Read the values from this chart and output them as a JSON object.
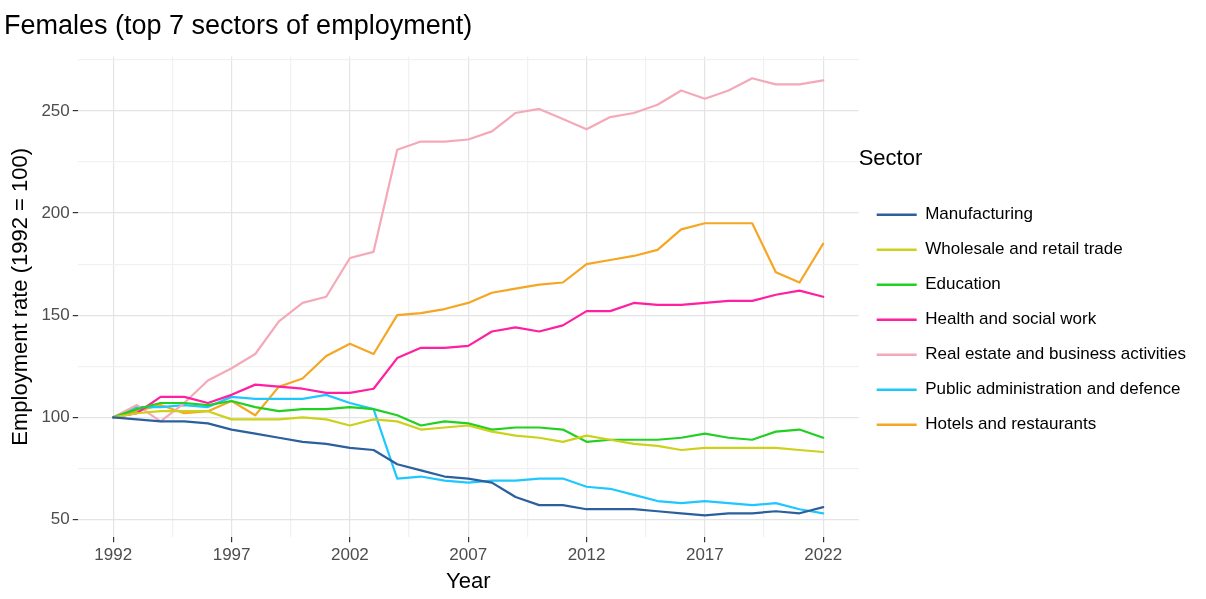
{
  "chart_data": {
    "type": "line",
    "title": "Females (top 7 sectors of employment)",
    "xlabel": "Year",
    "ylabel": "Employment rate (1992 = 100)",
    "legend_title": "Sector",
    "x": [
      1992,
      1993,
      1994,
      1995,
      1996,
      1997,
      1998,
      1999,
      2000,
      2001,
      2002,
      2003,
      2004,
      2005,
      2006,
      2007,
      2008,
      2009,
      2010,
      2011,
      2012,
      2013,
      2014,
      2015,
      2016,
      2017,
      2018,
      2019,
      2020,
      2021,
      2022
    ],
    "series": [
      {
        "name": "Manufacturing",
        "color": "#2c5f9e",
        "values": [
          100,
          99,
          98,
          98,
          97,
          94,
          92,
          90,
          88,
          87,
          85,
          84,
          77,
          74,
          71,
          70,
          68,
          61,
          57,
          57,
          55,
          55,
          55,
          54,
          53,
          52,
          53,
          53,
          54,
          53,
          56
        ]
      },
      {
        "name": "Wholesale and retail trade",
        "color": "#cdd11a",
        "values": [
          100,
          102,
          103,
          103,
          103,
          99,
          99,
          99,
          100,
          99,
          96,
          99,
          98,
          94,
          95,
          96,
          93,
          91,
          90,
          88,
          91,
          89,
          87,
          86,
          84,
          85,
          85,
          85,
          85,
          84,
          83
        ]
      },
      {
        "name": "Education",
        "color": "#22d022",
        "values": [
          100,
          104,
          107,
          107,
          106,
          108,
          105,
          103,
          104,
          104,
          105,
          104,
          101,
          96,
          98,
          97,
          94,
          95,
          95,
          94,
          88,
          89,
          89,
          89,
          90,
          92,
          90,
          89,
          93,
          94,
          90
        ]
      },
      {
        "name": "Health and social work",
        "color": "#ff1fa0",
        "values": [
          100,
          102,
          110,
          110,
          107,
          111,
          116,
          115,
          114,
          112,
          112,
          114,
          129,
          134,
          134,
          135,
          142,
          144,
          142,
          145,
          152,
          152,
          156,
          155,
          155,
          156,
          157,
          157,
          160,
          162,
          159
        ]
      },
      {
        "name": "Real estate and business activities",
        "color": "#f5a9b8",
        "values": [
          100,
          106,
          98,
          107,
          118,
          124,
          131,
          147,
          156,
          159,
          178,
          181,
          231,
          235,
          235,
          236,
          240,
          249,
          251,
          246,
          241,
          247,
          249,
          253,
          260,
          256,
          260,
          266,
          263,
          263,
          265
        ]
      },
      {
        "name": "Public administration and defence",
        "color": "#1ec8ff",
        "values": [
          100,
          105,
          105,
          106,
          105,
          110,
          109,
          109,
          109,
          111,
          107,
          104,
          70,
          71,
          69,
          68,
          69,
          69,
          70,
          70,
          66,
          65,
          62,
          59,
          58,
          59,
          58,
          57,
          58,
          55,
          53
        ]
      },
      {
        "name": "Hotels and restaurants",
        "color": "#f5a623",
        "values": [
          100,
          103,
          106,
          102,
          103,
          108,
          101,
          115,
          119,
          130,
          136,
          131,
          150,
          151,
          153,
          156,
          161,
          163,
          165,
          166,
          175,
          177,
          179,
          182,
          192,
          195,
          195,
          195,
          171,
          166,
          185
        ]
      }
    ],
    "xlim": [
      1990.5,
      2023.5
    ],
    "xticks": [
      1992,
      {
        "value": 1994.5,
        "label": null
      },
      1997,
      {
        "value": 1999.5,
        "label": null
      },
      2002,
      {
        "value": 2004.5,
        "label": null
      },
      2007,
      {
        "value": 2009.5,
        "label": null
      },
      2012,
      {
        "value": 2014.5,
        "label": null
      },
      2017,
      {
        "value": 2019.5,
        "label": null
      },
      2022
    ],
    "ylim": [
      41.3,
      276.7
    ],
    "yticks": [
      50,
      {
        "value": 75,
        "label": null
      },
      100,
      {
        "value": 125,
        "label": null
      },
      150,
      {
        "value": 175,
        "label": null
      },
      200,
      {
        "value": 225,
        "label": null
      },
      250,
      {
        "value": 275,
        "label": null
      }
    ],
    "grid": true,
    "legend": "right",
    "marker": "none",
    "line_style": "solid"
  }
}
